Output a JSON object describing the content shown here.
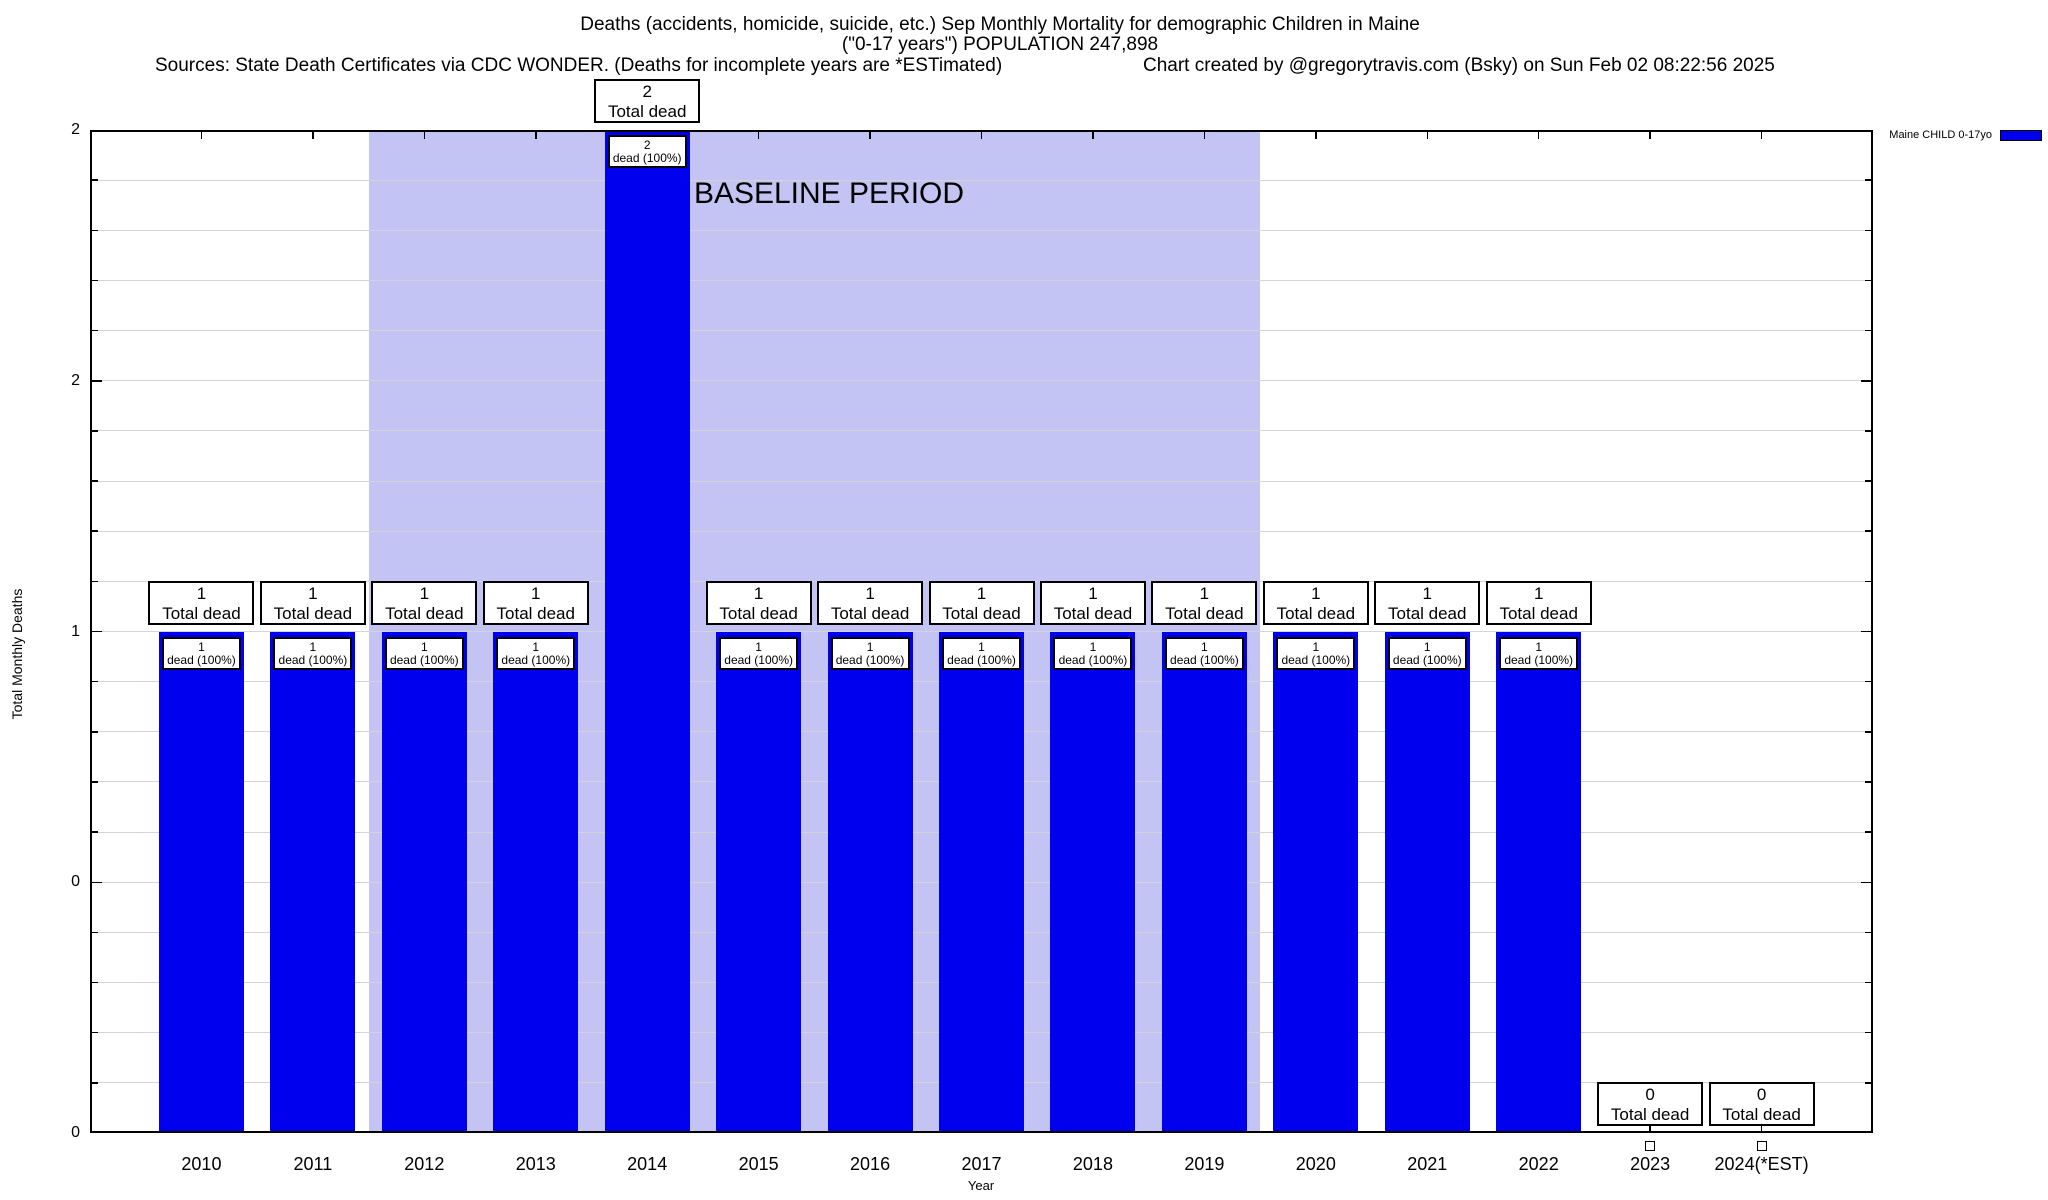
{
  "header": {
    "title_line1": "Deaths (accidents, homicide, suicide, etc.) Sep Monthly Mortality for demographic Children in Maine",
    "title_line2": "(\"0-17 years\") POPULATION 247,898",
    "sources": "Sources: State Death Certificates via CDC WONDER. (Deaths for incomplete years are *ESTimated)",
    "credit": "Chart created by @gregorytravis.com (Bsky) on Sun Feb 02 08:22:56 2025"
  },
  "legend": {
    "label": "Maine CHILD 0-17yo"
  },
  "chart_data": {
    "type": "bar",
    "title": "Deaths (accidents, homicide, suicide, etc.) Sep Monthly Mortality for demographic Children in Maine",
    "subtitle": "(\"0-17 years\") POPULATION 247,898",
    "xlabel": "Year",
    "ylabel": "Total Monthly Deaths",
    "categories": [
      "2010",
      "2011",
      "2012",
      "2013",
      "2014",
      "2015",
      "2016",
      "2017",
      "2018",
      "2019",
      "2020",
      "2021",
      "2022",
      "2023",
      "2024(*EST)"
    ],
    "years": [
      2010,
      2011,
      2012,
      2013,
      2014,
      2015,
      2016,
      2017,
      2018,
      2019,
      2020,
      2021,
      2022,
      2023,
      2024
    ],
    "series": [
      {
        "name": "Maine CHILD 0-17yo",
        "values": [
          1,
          1,
          1,
          1,
          2,
          1,
          1,
          1,
          1,
          1,
          1,
          1,
          1,
          0,
          0
        ]
      }
    ],
    "bar_top_label": "Total dead",
    "bar_inner_label": "dead (100%)",
    "xlim": [
      2009,
      2025
    ],
    "ylim": [
      0,
      2
    ],
    "ytick_values": [
      2,
      1.5,
      1,
      0.5,
      0
    ],
    "ytick_labels": [
      "2",
      "2",
      "1",
      "0",
      "0"
    ],
    "grid": "horizontal every 0.1, light gray",
    "legend_position": "top-right",
    "bar_color": "#0000EE",
    "grid_color": "#D4D4D4",
    "baseline_region": {
      "label": "BASELINE PERIOD",
      "from_x": 2011.5,
      "to_x": 2019.5,
      "color": "#C4C4F4"
    },
    "est_marker_years": [
      "2023",
      "2024"
    ]
  }
}
